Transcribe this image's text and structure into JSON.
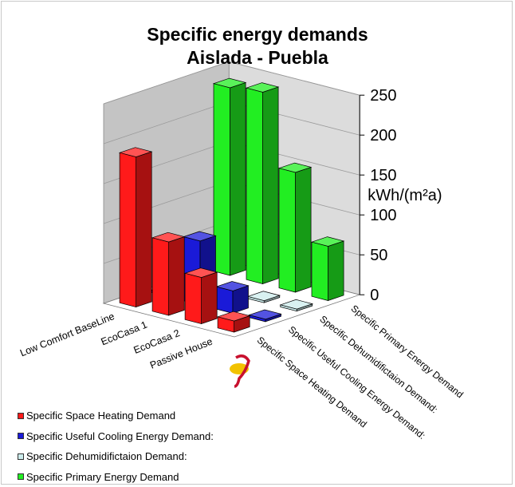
{
  "chart_data": {
    "type": "bar",
    "style": "3d-clustered-bar",
    "title": "Specific energy demands",
    "subtitle": "Aislada - Puebla",
    "categories": [
      "Low Comfort BaseLine",
      "EcoCasa 1",
      "EcoCasa 2",
      "Passive House"
    ],
    "series": [
      {
        "name": "Specific Space Heating Demand",
        "color": "#ff1a1a",
        "values": [
          188,
          92,
          58,
          14
        ]
      },
      {
        "name": "Specific Useful Cooling Energy Demand:",
        "color": "#1a1ad8",
        "values": [
          0,
          80,
          28,
          3
        ]
      },
      {
        "name": "Specific Dehumidifictaion Demand:",
        "color": "#ccecec",
        "values": [
          0,
          0,
          0,
          0
        ]
      },
      {
        "name": "Specific Primary Energy Demand",
        "color": "#22ee22",
        "values": [
          235,
          240,
          150,
          68
        ]
      }
    ],
    "depth_labels": [
      "Specific Space Heating Demand",
      "Specific Useful Cooling Energy Demand:",
      "Specific Dehumidifictaion Demand:",
      "Specific Primary Energy Demand"
    ],
    "ylabel": "kWh/(m²a)",
    "ylim": [
      0,
      250
    ],
    "yticks": [
      "0",
      "50",
      "100",
      "150",
      "200",
      "250"
    ],
    "grid": true,
    "legend_position": "bottom-left"
  }
}
